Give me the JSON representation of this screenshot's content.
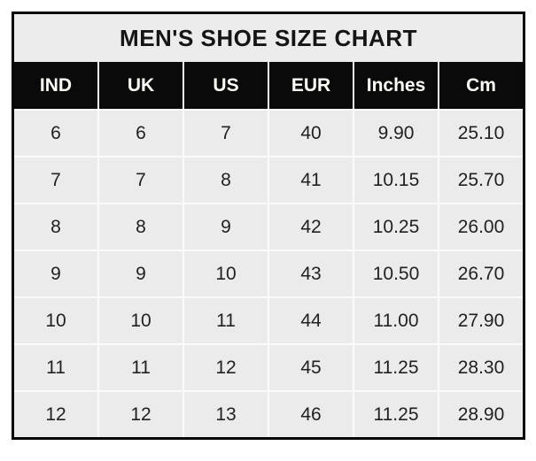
{
  "chart": {
    "title": "MEN'S SHOE SIZE CHART",
    "columns": [
      "IND",
      "UK",
      "US",
      "EUR",
      "Inches",
      "Cm"
    ],
    "rows": [
      [
        "6",
        "6",
        "7",
        "40",
        "9.90",
        "25.10"
      ],
      [
        "7",
        "7",
        "8",
        "41",
        "10.15",
        "25.70"
      ],
      [
        "8",
        "8",
        "9",
        "42",
        "10.25",
        "26.00"
      ],
      [
        "9",
        "9",
        "10",
        "43",
        "10.50",
        "26.70"
      ],
      [
        "10",
        "10",
        "11",
        "44",
        "11.00",
        "27.90"
      ],
      [
        "11",
        "11",
        "12",
        "45",
        "11.25",
        "28.30"
      ],
      [
        "12",
        "12",
        "13",
        "46",
        "11.25",
        "28.90"
      ]
    ]
  },
  "chart_data": {
    "type": "table",
    "title": "MEN'S SHOE SIZE CHART",
    "columns": [
      "IND",
      "UK",
      "US",
      "EUR",
      "Inches",
      "Cm"
    ],
    "rows": [
      [
        6,
        6,
        7,
        40,
        9.9,
        25.1
      ],
      [
        7,
        7,
        8,
        41,
        10.15,
        25.7
      ],
      [
        8,
        8,
        9,
        42,
        10.25,
        26.0
      ],
      [
        9,
        9,
        10,
        43,
        10.5,
        26.7
      ],
      [
        10,
        10,
        11,
        44,
        11.0,
        27.9
      ],
      [
        11,
        11,
        12,
        45,
        11.25,
        28.3
      ],
      [
        12,
        12,
        13,
        46,
        11.25,
        28.9
      ]
    ],
    "layout": {
      "header_style": "black-bar",
      "grid": "white-hairlines",
      "legend": "none"
    }
  },
  "colors": {
    "page_background": "#ffffff",
    "table_border": "#060606",
    "title_background": "#ececec",
    "title_text": "#151515",
    "header_background": "#0a0a0a",
    "header_text": "#fdfdf8",
    "cell_background": "#ebebeb",
    "cell_text": "#212121",
    "separator": "#fafafa"
  }
}
